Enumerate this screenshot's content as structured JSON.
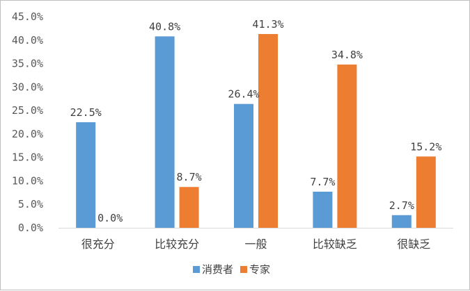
{
  "chart_data": {
    "type": "bar",
    "categories": [
      "很充分",
      "比较充分",
      "一般",
      "比较缺乏",
      "很缺乏"
    ],
    "series": [
      {
        "name": "消费者",
        "color": "#5b9bd5",
        "values": [
          22.5,
          40.8,
          26.4,
          7.7,
          2.7
        ],
        "labels": [
          "22.5%",
          "40.8%",
          "26.4%",
          "7.7%",
          "2.7%"
        ]
      },
      {
        "name": "专家",
        "color": "#ed7d31",
        "values": [
          0.0,
          8.7,
          41.3,
          34.8,
          15.2
        ],
        "labels": [
          "0.0%",
          "8.7%",
          "41.3%",
          "34.8%",
          "15.2%"
        ]
      }
    ],
    "yticks": [
      0,
      5,
      10,
      15,
      20,
      25,
      30,
      35,
      40,
      45
    ],
    "ytick_labels": [
      "0.0%",
      "5.0%",
      "10.0%",
      "15.0%",
      "20.0%",
      "25.0%",
      "30.0%",
      "35.0%",
      "40.0%",
      "45.0%"
    ],
    "ylim": [
      0,
      45
    ],
    "grid": false,
    "legend_position": "bottom",
    "axis_color": "#d9d9d9"
  }
}
